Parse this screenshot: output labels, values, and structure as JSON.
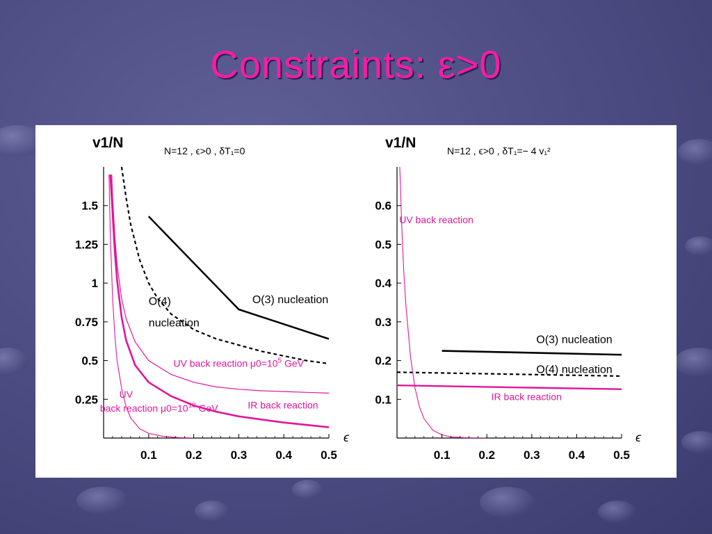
{
  "slide": {
    "title": "Constraints: ε>0"
  },
  "colors": {
    "title": "#ff1aa8",
    "magenta": "#e0159a",
    "black": "#000000"
  },
  "chart_data": [
    {
      "type": "line",
      "ylabel": "v1/N",
      "xlabel": "ϵ",
      "header": "N=12 , ϵ>0 , δT₁=0",
      "xlim": [
        0,
        0.5
      ],
      "ylim": [
        0,
        1.75
      ],
      "xticks": [
        "0.1",
        "0.2",
        "0.3",
        "0.4",
        "0.5"
      ],
      "xtick_values": [
        0.1,
        0.2,
        0.3,
        0.4,
        0.5
      ],
      "yticks": [
        "0.25",
        "0.5",
        "0.75",
        "1",
        "1.25",
        "1.5"
      ],
      "ytick_values": [
        0.25,
        0.5,
        0.75,
        1,
        1.25,
        1.5
      ],
      "series": [
        {
          "x": [
            0.1,
            0.3,
            0.5
          ],
          "y": [
            1.43,
            0.83,
            0.64
          ],
          "color": "#000000",
          "dash": false,
          "width": 2.5
        },
        {
          "x": [
            0.04,
            0.05,
            0.06,
            0.08,
            0.1,
            0.12,
            0.15,
            0.2,
            0.25,
            0.3,
            0.35,
            0.4,
            0.45,
            0.5
          ],
          "y": [
            1.75,
            1.55,
            1.38,
            1.15,
            1.0,
            0.9,
            0.8,
            0.7,
            0.64,
            0.6,
            0.56,
            0.53,
            0.5,
            0.48
          ],
          "color": "#000000",
          "dash": true,
          "width": 2.2
        },
        {
          "x": [
            0.018,
            0.02,
            0.025,
            0.03,
            0.04,
            0.05,
            0.07,
            0.1,
            0.15,
            0.2,
            0.25,
            0.3,
            0.35,
            0.4,
            0.45,
            0.5
          ],
          "y": [
            1.7,
            1.55,
            1.3,
            1.12,
            0.9,
            0.77,
            0.62,
            0.5,
            0.41,
            0.36,
            0.33,
            0.315,
            0.305,
            0.3,
            0.295,
            0.29
          ],
          "color": "#e0159a",
          "dash": false,
          "width": 1.2
        },
        {
          "x": [
            0.015,
            0.02,
            0.025,
            0.03,
            0.04,
            0.05,
            0.07,
            0.1,
            0.15,
            0.2,
            0.25,
            0.3,
            0.35,
            0.4,
            0.45,
            0.5
          ],
          "y": [
            1.7,
            1.45,
            1.2,
            1.02,
            0.78,
            0.63,
            0.47,
            0.36,
            0.27,
            0.21,
            0.17,
            0.14,
            0.12,
            0.1,
            0.085,
            0.07
          ],
          "color": "#e0159a",
          "dash": false,
          "width": 2.6
        },
        {
          "x": [
            0.012,
            0.015,
            0.02,
            0.025,
            0.03,
            0.04,
            0.05,
            0.06,
            0.08,
            0.1,
            0.13,
            0.16,
            0.2
          ],
          "y": [
            1.7,
            1.3,
            0.9,
            0.66,
            0.5,
            0.32,
            0.2,
            0.13,
            0.06,
            0.03,
            0.012,
            0.004,
            0.0
          ],
          "color": "#e0159a",
          "dash": false,
          "width": 1.1
        }
      ],
      "annotations": [
        {
          "text": "O(3) nucleation",
          "x": 0.33,
          "y": 0.87,
          "color": "#000000"
        },
        {
          "text": "O(4)",
          "x": 0.1,
          "y": 0.86,
          "color": "#000000"
        },
        {
          "text": "nucleation",
          "x": 0.1,
          "y": 0.72,
          "color": "#000000"
        },
        {
          "text": "UV back reaction μ0=10",
          "x": 0.155,
          "y": 0.46,
          "color": "#e0159a",
          "sup": "5",
          "suffix": " GeV"
        },
        {
          "text": "UV",
          "x": 0.035,
          "y": 0.26,
          "color": "#e0159a"
        },
        {
          "text": "back reaction μ0=10",
          "x": -0.008,
          "y": 0.17,
          "color": "#e0159a",
          "sup": "18",
          "suffix": " GeV"
        },
        {
          "text": "IR back reaction",
          "x": 0.32,
          "y": 0.19,
          "color": "#e0159a"
        }
      ]
    },
    {
      "type": "line",
      "ylabel": "v1/N",
      "xlabel": "ϵ",
      "header": "N=12 , ϵ>0 , δT₁=− 4 v₁²",
      "xlim": [
        0,
        0.5
      ],
      "ylim": [
        0,
        0.7
      ],
      "xticks": [
        "0.1",
        "0.2",
        "0.3",
        "0.4",
        "0.5"
      ],
      "xtick_values": [
        0.1,
        0.2,
        0.3,
        0.4,
        0.5
      ],
      "yticks": [
        "0.1",
        "0.2",
        "0.3",
        "0.4",
        "0.5",
        "0.6"
      ],
      "ytick_values": [
        0.1,
        0.2,
        0.3,
        0.4,
        0.5,
        0.6
      ],
      "series": [
        {
          "x": [
            0.1,
            0.5
          ],
          "y": [
            0.225,
            0.215
          ],
          "color": "#000000",
          "dash": false,
          "width": 2.6
        },
        {
          "x": [
            0,
            0.5
          ],
          "y": [
            0.17,
            0.16
          ],
          "color": "#000000",
          "dash": true,
          "width": 2.2
        },
        {
          "x": [
            0,
            0.5
          ],
          "y": [
            0.136,
            0.126
          ],
          "color": "#e0159a",
          "dash": false,
          "width": 2.4
        },
        {
          "x": [
            0.006,
            0.008,
            0.01,
            0.015,
            0.02,
            0.03,
            0.04,
            0.05,
            0.06,
            0.08,
            0.1,
            0.12,
            0.15,
            0.18,
            0.2
          ],
          "y": [
            0.7,
            0.64,
            0.56,
            0.43,
            0.34,
            0.21,
            0.13,
            0.08,
            0.05,
            0.02,
            0.008,
            0.003,
            0.001,
            0.0,
            0.0
          ],
          "color": "#e0159a",
          "dash": false,
          "width": 1.1
        }
      ],
      "annotations": [
        {
          "text": "UV back reaction",
          "x": 0.005,
          "y": 0.555,
          "color": "#e0159a"
        },
        {
          "text": "O(3) nucleation",
          "x": 0.31,
          "y": 0.245,
          "color": "#000000"
        },
        {
          "text": "O(4) nucleation",
          "x": 0.31,
          "y": 0.168,
          "color": "#000000"
        },
        {
          "text": "IR back reaction",
          "x": 0.21,
          "y": 0.098,
          "color": "#e0159a"
        }
      ]
    }
  ]
}
